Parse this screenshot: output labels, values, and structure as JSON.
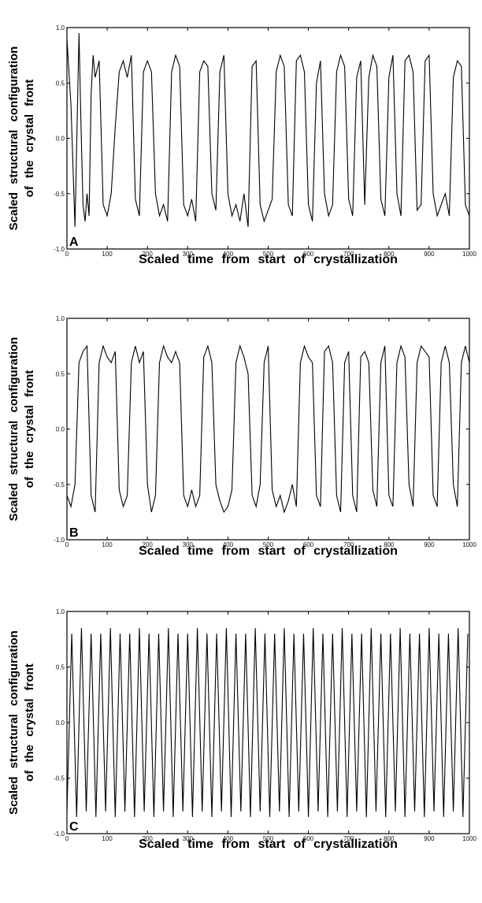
{
  "chart_data": [
    {
      "type": "line",
      "panel_label": "A",
      "xlabel": "Scaled time from start of crystallization",
      "ylabel_line1": "Scaled structural configuration",
      "ylabel_line2": "of the crystal front",
      "xlim": [
        0,
        1000
      ],
      "ylim": [
        -1.0,
        1.0
      ],
      "x_ticks": [
        "0",
        "100",
        "200",
        "300",
        "400",
        "500",
        "600",
        "700",
        "800",
        "900",
        "1000"
      ],
      "y_ticks": [
        "1.0",
        "0.5",
        "0.0",
        "-0.5",
        "-1.0"
      ],
      "series": [
        {
          "x": [
            0,
            10,
            20,
            30,
            35,
            40,
            45,
            50,
            55,
            60,
            65,
            70,
            80,
            90,
            100,
            110,
            120,
            130,
            140,
            150,
            160,
            170,
            180,
            190,
            200,
            210,
            220,
            230,
            240,
            250,
            260,
            270,
            280,
            290,
            300,
            310,
            320,
            330,
            340,
            350,
            360,
            370,
            380,
            390,
            400,
            410,
            420,
            430,
            440,
            450,
            460,
            470,
            480,
            490,
            500,
            510,
            520,
            530,
            540,
            550,
            560,
            570,
            580,
            590,
            600,
            610,
            620,
            630,
            640,
            650,
            660,
            670,
            680,
            690,
            700,
            710,
            720,
            730,
            740,
            750,
            760,
            770,
            780,
            790,
            800,
            810,
            820,
            830,
            840,
            850,
            860,
            870,
            880,
            890,
            900,
            910,
            920,
            930,
            940,
            950,
            960,
            970,
            980,
            990,
            1000
          ],
          "y": [
            0.9,
            0.3,
            -0.8,
            0.95,
            0.1,
            -0.6,
            -0.75,
            -0.5,
            -0.7,
            0.4,
            0.75,
            0.55,
            0.7,
            -0.6,
            -0.7,
            -0.5,
            0.1,
            0.6,
            0.7,
            0.55,
            0.75,
            -0.55,
            -0.7,
            0.6,
            0.7,
            0.6,
            -0.5,
            -0.7,
            -0.6,
            -0.75,
            0.6,
            0.75,
            0.65,
            -0.6,
            -0.7,
            -0.55,
            -0.75,
            0.6,
            0.7,
            0.65,
            -0.5,
            -0.65,
            0.6,
            0.75,
            -0.5,
            -0.7,
            -0.6,
            -0.75,
            -0.5,
            -0.8,
            0.65,
            0.7,
            -0.6,
            -0.75,
            -0.65,
            -0.55,
            0.6,
            0.75,
            0.65,
            -0.6,
            -0.7,
            0.7,
            0.75,
            0.6,
            -0.6,
            -0.75,
            0.5,
            0.7,
            -0.5,
            -0.7,
            -0.6,
            0.6,
            0.75,
            0.65,
            -0.55,
            -0.7,
            0.55,
            0.7,
            -0.6,
            0.55,
            0.75,
            0.65,
            -0.55,
            -0.7,
            0.55,
            0.75,
            -0.5,
            -0.7,
            0.7,
            0.75,
            0.6,
            -0.65,
            -0.6,
            0.7,
            0.75,
            -0.5,
            -0.7,
            -0.6,
            -0.5,
            -0.7,
            0.55,
            0.7,
            0.65,
            -0.6,
            -0.7
          ]
        }
      ]
    },
    {
      "type": "line",
      "panel_label": "B",
      "xlabel": "Scaled time from start of crystallization",
      "ylabel_line1": "Scaled structural configuration",
      "ylabel_line2": "of the crystal front",
      "xlim": [
        0,
        1000
      ],
      "ylim": [
        -1.0,
        1.0
      ],
      "x_ticks": [
        "0",
        "100",
        "200",
        "300",
        "400",
        "500",
        "600",
        "700",
        "800",
        "900",
        "1000"
      ],
      "y_ticks": [
        "1.0",
        "0.5",
        "0.0",
        "-0.5",
        "-1.0"
      ],
      "series": [
        {
          "x": [
            0,
            10,
            20,
            30,
            40,
            50,
            60,
            70,
            80,
            90,
            100,
            110,
            120,
            130,
            140,
            150,
            160,
            170,
            180,
            190,
            200,
            210,
            220,
            230,
            240,
            250,
            260,
            270,
            280,
            290,
            300,
            310,
            320,
            330,
            340,
            350,
            360,
            370,
            380,
            390,
            400,
            410,
            420,
            430,
            440,
            450,
            460,
            470,
            480,
            490,
            500,
            510,
            520,
            530,
            540,
            550,
            560,
            570,
            580,
            590,
            600,
            610,
            620,
            630,
            640,
            650,
            660,
            670,
            680,
            690,
            700,
            710,
            720,
            730,
            740,
            750,
            760,
            770,
            780,
            790,
            800,
            810,
            820,
            830,
            840,
            850,
            860,
            870,
            880,
            890,
            900,
            910,
            920,
            930,
            940,
            950,
            960,
            970,
            980,
            990,
            1000
          ],
          "y": [
            -0.6,
            -0.7,
            -0.5,
            0.6,
            0.7,
            0.75,
            -0.6,
            -0.75,
            0.6,
            0.75,
            0.65,
            0.6,
            0.7,
            -0.55,
            -0.7,
            -0.6,
            0.6,
            0.75,
            0.6,
            0.7,
            -0.5,
            -0.75,
            -0.6,
            0.6,
            0.75,
            0.65,
            0.6,
            0.7,
            0.6,
            -0.6,
            -0.7,
            -0.55,
            -0.7,
            -0.6,
            0.65,
            0.75,
            0.6,
            -0.5,
            -0.65,
            -0.75,
            -0.7,
            -0.55,
            0.6,
            0.75,
            0.65,
            0.5,
            -0.6,
            -0.7,
            -0.5,
            0.6,
            0.75,
            -0.55,
            -0.7,
            -0.6,
            -0.75,
            -0.65,
            -0.5,
            -0.7,
            0.6,
            0.75,
            0.65,
            0.6,
            -0.6,
            -0.7,
            0.7,
            0.75,
            0.6,
            -0.6,
            -0.75,
            0.6,
            0.7,
            -0.6,
            -0.75,
            0.65,
            0.7,
            0.6,
            -0.55,
            -0.7,
            0.6,
            0.75,
            -0.6,
            -0.7,
            0.6,
            0.75,
            0.65,
            -0.5,
            -0.7,
            0.6,
            0.75,
            0.7,
            0.65,
            -0.6,
            -0.7,
            0.6,
            0.75,
            0.6,
            -0.5,
            -0.7,
            0.6,
            0.75,
            0.6
          ]
        }
      ]
    },
    {
      "type": "line",
      "panel_label": "C",
      "xlabel": "Scaled time from start of crystallization",
      "ylabel_line1": "Scaled structural configuration",
      "ylabel_line2": "of the crystal front",
      "xlim": [
        0,
        1000
      ],
      "ylim": [
        -1.0,
        1.0
      ],
      "x_ticks": [
        "0",
        "100",
        "200",
        "300",
        "400",
        "500",
        "600",
        "700",
        "800",
        "900",
        "1000"
      ],
      "y_ticks": [
        "1.0",
        "0.5",
        "0.0",
        "-0.5",
        "-1.0"
      ],
      "series": [
        {
          "x": [
            0,
            12,
            24,
            36,
            48,
            60,
            72,
            84,
            96,
            108,
            120,
            132,
            144,
            156,
            168,
            180,
            192,
            204,
            216,
            228,
            240,
            252,
            264,
            276,
            288,
            300,
            312,
            324,
            336,
            348,
            360,
            372,
            384,
            396,
            408,
            420,
            432,
            444,
            456,
            468,
            480,
            492,
            504,
            516,
            528,
            540,
            552,
            564,
            576,
            588,
            600,
            612,
            624,
            636,
            648,
            660,
            672,
            684,
            696,
            708,
            720,
            732,
            744,
            756,
            768,
            780,
            792,
            804,
            816,
            828,
            840,
            852,
            864,
            876,
            888,
            900,
            912,
            924,
            936,
            948,
            960,
            972,
            984,
            996
          ],
          "y": [
            -0.8,
            0.8,
            -0.85,
            0.85,
            -0.8,
            0.8,
            -0.85,
            0.8,
            -0.8,
            0.85,
            -0.85,
            0.8,
            -0.8,
            0.8,
            -0.85,
            0.85,
            -0.8,
            0.8,
            -0.85,
            0.8,
            -0.8,
            0.85,
            -0.85,
            0.8,
            -0.8,
            0.8,
            -0.85,
            0.85,
            -0.8,
            0.8,
            -0.85,
            0.8,
            -0.8,
            0.85,
            -0.85,
            0.8,
            -0.8,
            0.8,
            -0.85,
            0.85,
            -0.8,
            0.8,
            -0.85,
            0.8,
            -0.8,
            0.85,
            -0.85,
            0.8,
            -0.8,
            0.8,
            -0.85,
            0.85,
            -0.8,
            0.8,
            -0.85,
            0.8,
            -0.8,
            0.85,
            -0.85,
            0.8,
            -0.8,
            0.8,
            -0.85,
            0.85,
            -0.8,
            0.8,
            -0.85,
            0.8,
            -0.8,
            0.85,
            -0.85,
            0.8,
            -0.8,
            0.8,
            -0.85,
            0.85,
            -0.8,
            0.8,
            -0.85,
            0.8,
            -0.8,
            0.85,
            -0.85,
            0.8
          ]
        }
      ]
    }
  ]
}
